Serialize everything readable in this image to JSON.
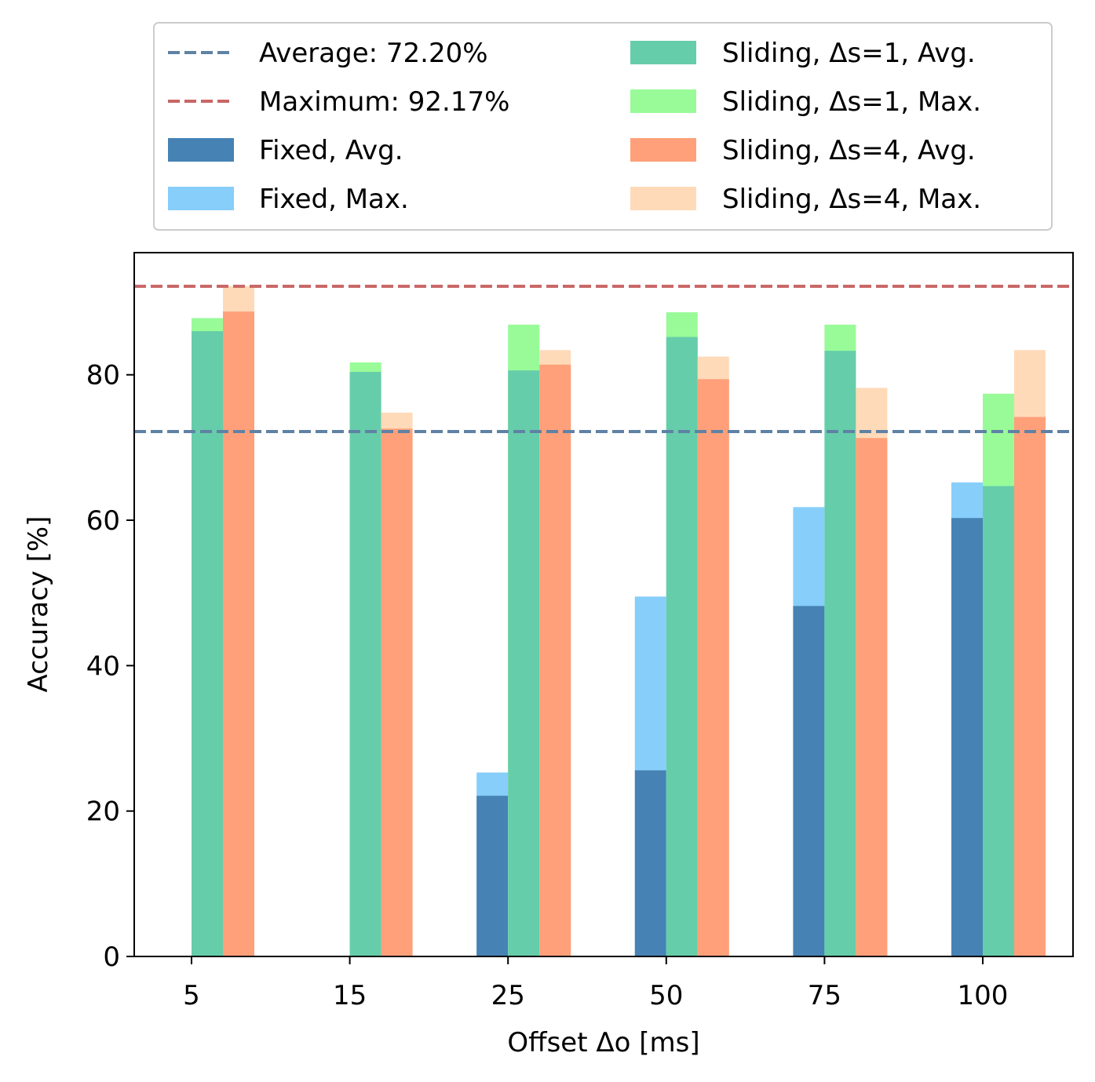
{
  "chart_data": {
    "type": "bar",
    "title": "",
    "xlabel": "Offset Δo [ms]",
    "ylabel": "Accuracy [%]",
    "categories": [
      "5",
      "15",
      "25",
      "50",
      "75",
      "100"
    ],
    "ylim": [
      0,
      96.8
    ],
    "yticks": [
      0,
      20,
      40,
      60,
      80
    ],
    "grid": false,
    "legend_position": "top, above plot, 2 columns",
    "series": [
      {
        "name": "Fixed, Avg.",
        "color": "#4682b4",
        "values": [
          null,
          null,
          22.1,
          25.6,
          48.2,
          60.3
        ]
      },
      {
        "name": "Fixed, Max.",
        "color": "#87cefa",
        "values": [
          null,
          null,
          25.3,
          49.5,
          61.8,
          65.2
        ]
      },
      {
        "name": "Sliding, Δs=1, Avg.",
        "color": "#66cdaa",
        "values": [
          86.0,
          80.4,
          80.6,
          85.2,
          83.3,
          64.7
        ]
      },
      {
        "name": "Sliding, Δs=1, Max.",
        "color": "#98fb98",
        "values": [
          87.8,
          81.7,
          86.9,
          88.6,
          86.9,
          77.4
        ]
      },
      {
        "name": "Sliding, Δs=4, Avg.",
        "color": "#ffa07a",
        "values": [
          88.7,
          72.6,
          81.4,
          79.4,
          71.3,
          74.2
        ]
      },
      {
        "name": "Sliding, Δs=4, Max.",
        "color": "#ffdab9",
        "values": [
          92.2,
          74.8,
          83.4,
          82.5,
          78.2,
          83.4
        ]
      }
    ],
    "reference_lines": [
      {
        "name": "Average: 72.20%",
        "value": 72.2,
        "color": "#5f82a4",
        "style": "dashed"
      },
      {
        "name": "Maximum: 92.17%",
        "value": 92.17,
        "color": "#c96666",
        "style": "dashed"
      }
    ],
    "legend_order": [
      "Average: 72.20%",
      "Maximum: 92.17%",
      "Fixed, Avg.",
      "Fixed, Max.",
      "Sliding, Δs=1, Avg.",
      "Sliding, Δs=1, Max.",
      "Sliding, Δs=4, Avg.",
      "Sliding, Δs=4, Max."
    ]
  }
}
